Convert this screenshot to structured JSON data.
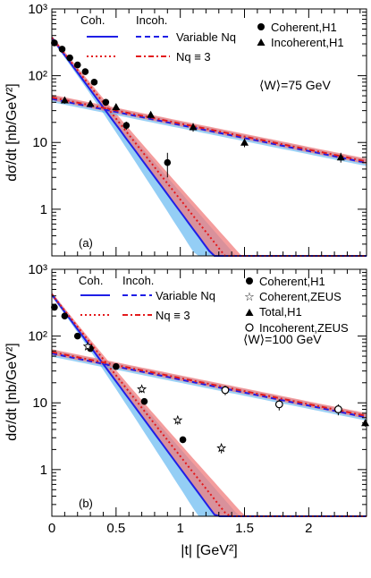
{
  "chart_data": [
    {
      "type": "line",
      "panel_label": "(a)",
      "ylabel": "dσ/dt [nb/GeV²]",
      "xlabel": "",
      "x_range": [
        0,
        2.45
      ],
      "ylim": [
        0.2,
        1000
      ],
      "y_scale": "log",
      "y_ticks": [
        {
          "v": 1,
          "label": "1"
        },
        {
          "v": 10,
          "label": "10"
        },
        {
          "v": 100,
          "label": "10²"
        },
        {
          "v": 1000,
          "label": "10³"
        }
      ],
      "legend": {
        "header_coh": "Coh.",
        "header_incoh": "Incoh.",
        "row1": "Variable Nq",
        "row2": "Nq ≡ 3",
        "markers": [
          "Coherent,H1",
          "Incoherent,H1"
        ]
      },
      "w_label": "⟨W⟩=75 GeV",
      "colors": {
        "blue": "#1f1fe6",
        "red": "#e31a1c",
        "blue_band": "#5ab4f0",
        "red_band": "#f07c7c"
      },
      "curves": {
        "coherent": {
          "a": 370,
          "b": 6.0
        },
        "incoherent": {
          "a": 45,
          "b": 0.9
        }
      },
      "series": [
        {
          "name": "Coherent,H1",
          "marker": "circle",
          "x": [
            0.02,
            0.08,
            0.14,
            0.2,
            0.26,
            0.33,
            0.42,
            0.58,
            0.9
          ],
          "y": [
            310,
            250,
            185,
            145,
            115,
            80,
            40,
            18,
            5.0
          ],
          "yerr": [
            25,
            20,
            15,
            12,
            10,
            7,
            4,
            2.5,
            2.0
          ]
        },
        {
          "name": "Incoherent,H1",
          "marker": "triangle",
          "x": [
            0.1,
            0.3,
            0.5,
            0.77,
            1.1,
            1.5,
            2.25
          ],
          "y": [
            43,
            38,
            34,
            26,
            17,
            10,
            6
          ],
          "yerr": [
            5,
            4,
            4,
            3,
            2.5,
            1.5,
            1.0
          ]
        }
      ]
    },
    {
      "type": "line",
      "panel_label": "(b)",
      "ylabel": "dσ/dt [nb/GeV²]",
      "xlabel": "|t| [GeV²]",
      "x_range": [
        0,
        2.45
      ],
      "ylim": [
        0.2,
        1000
      ],
      "y_scale": "log",
      "x_ticks": [
        {
          "v": 0,
          "label": "0"
        },
        {
          "v": 0.5,
          "label": "0.5"
        },
        {
          "v": 1,
          "label": "1"
        },
        {
          "v": 1.5,
          "label": "1.5"
        },
        {
          "v": 2,
          "label": "2"
        }
      ],
      "y_ticks": [
        {
          "v": 1,
          "label": "1"
        },
        {
          "v": 10,
          "label": "10"
        },
        {
          "v": 100,
          "label": "10²"
        },
        {
          "v": 1000,
          "label": "10³"
        }
      ],
      "legend": {
        "header_coh": "Coh.",
        "header_incoh": "Incoh.",
        "row1": "Variable Nq",
        "row2": "Nq ≡ 3",
        "markers": [
          "Coherent,H1",
          "Coherent,ZEUS",
          "Total,H1",
          "Incoherent,ZEUS"
        ]
      },
      "w_label": "⟨W⟩=100 GeV",
      "colors": {
        "blue": "#1f1fe6",
        "red": "#e31a1c",
        "blue_band": "#5ab4f0",
        "red_band": "#f07c7c"
      },
      "curves": {
        "coherent": {
          "a": 420,
          "b": 6.0
        },
        "incoherent": {
          "a": 55,
          "b": 0.9
        }
      },
      "series": [
        {
          "name": "Coherent,H1",
          "marker": "circle",
          "x": [
            0.02,
            0.1,
            0.2,
            0.3,
            0.5,
            0.72,
            1.02
          ],
          "y": [
            270,
            200,
            100,
            65,
            35,
            10.5,
            2.8
          ],
          "yerr": [
            25,
            20,
            10,
            6,
            3.5,
            1.0,
            0.3
          ]
        },
        {
          "name": "Coherent,ZEUS",
          "marker": "star",
          "x": [
            0.28,
            0.7,
            0.98,
            1.32
          ],
          "y": [
            70,
            16,
            5.5,
            2.1
          ],
          "yerr": [
            6,
            1.8,
            0.8,
            0.35
          ]
        },
        {
          "name": "Total,H1",
          "marker": "triangle",
          "x": [
            2.44
          ],
          "y": [
            5.0
          ],
          "yerr": [
            0.6
          ]
        },
        {
          "name": "Incoherent,ZEUS",
          "marker": "open-circle",
          "x": [
            1.35,
            1.77,
            2.23
          ],
          "y": [
            15.5,
            9.5,
            8.0
          ],
          "yerr": [
            2.5,
            1.8,
            1.5
          ]
        }
      ]
    }
  ]
}
